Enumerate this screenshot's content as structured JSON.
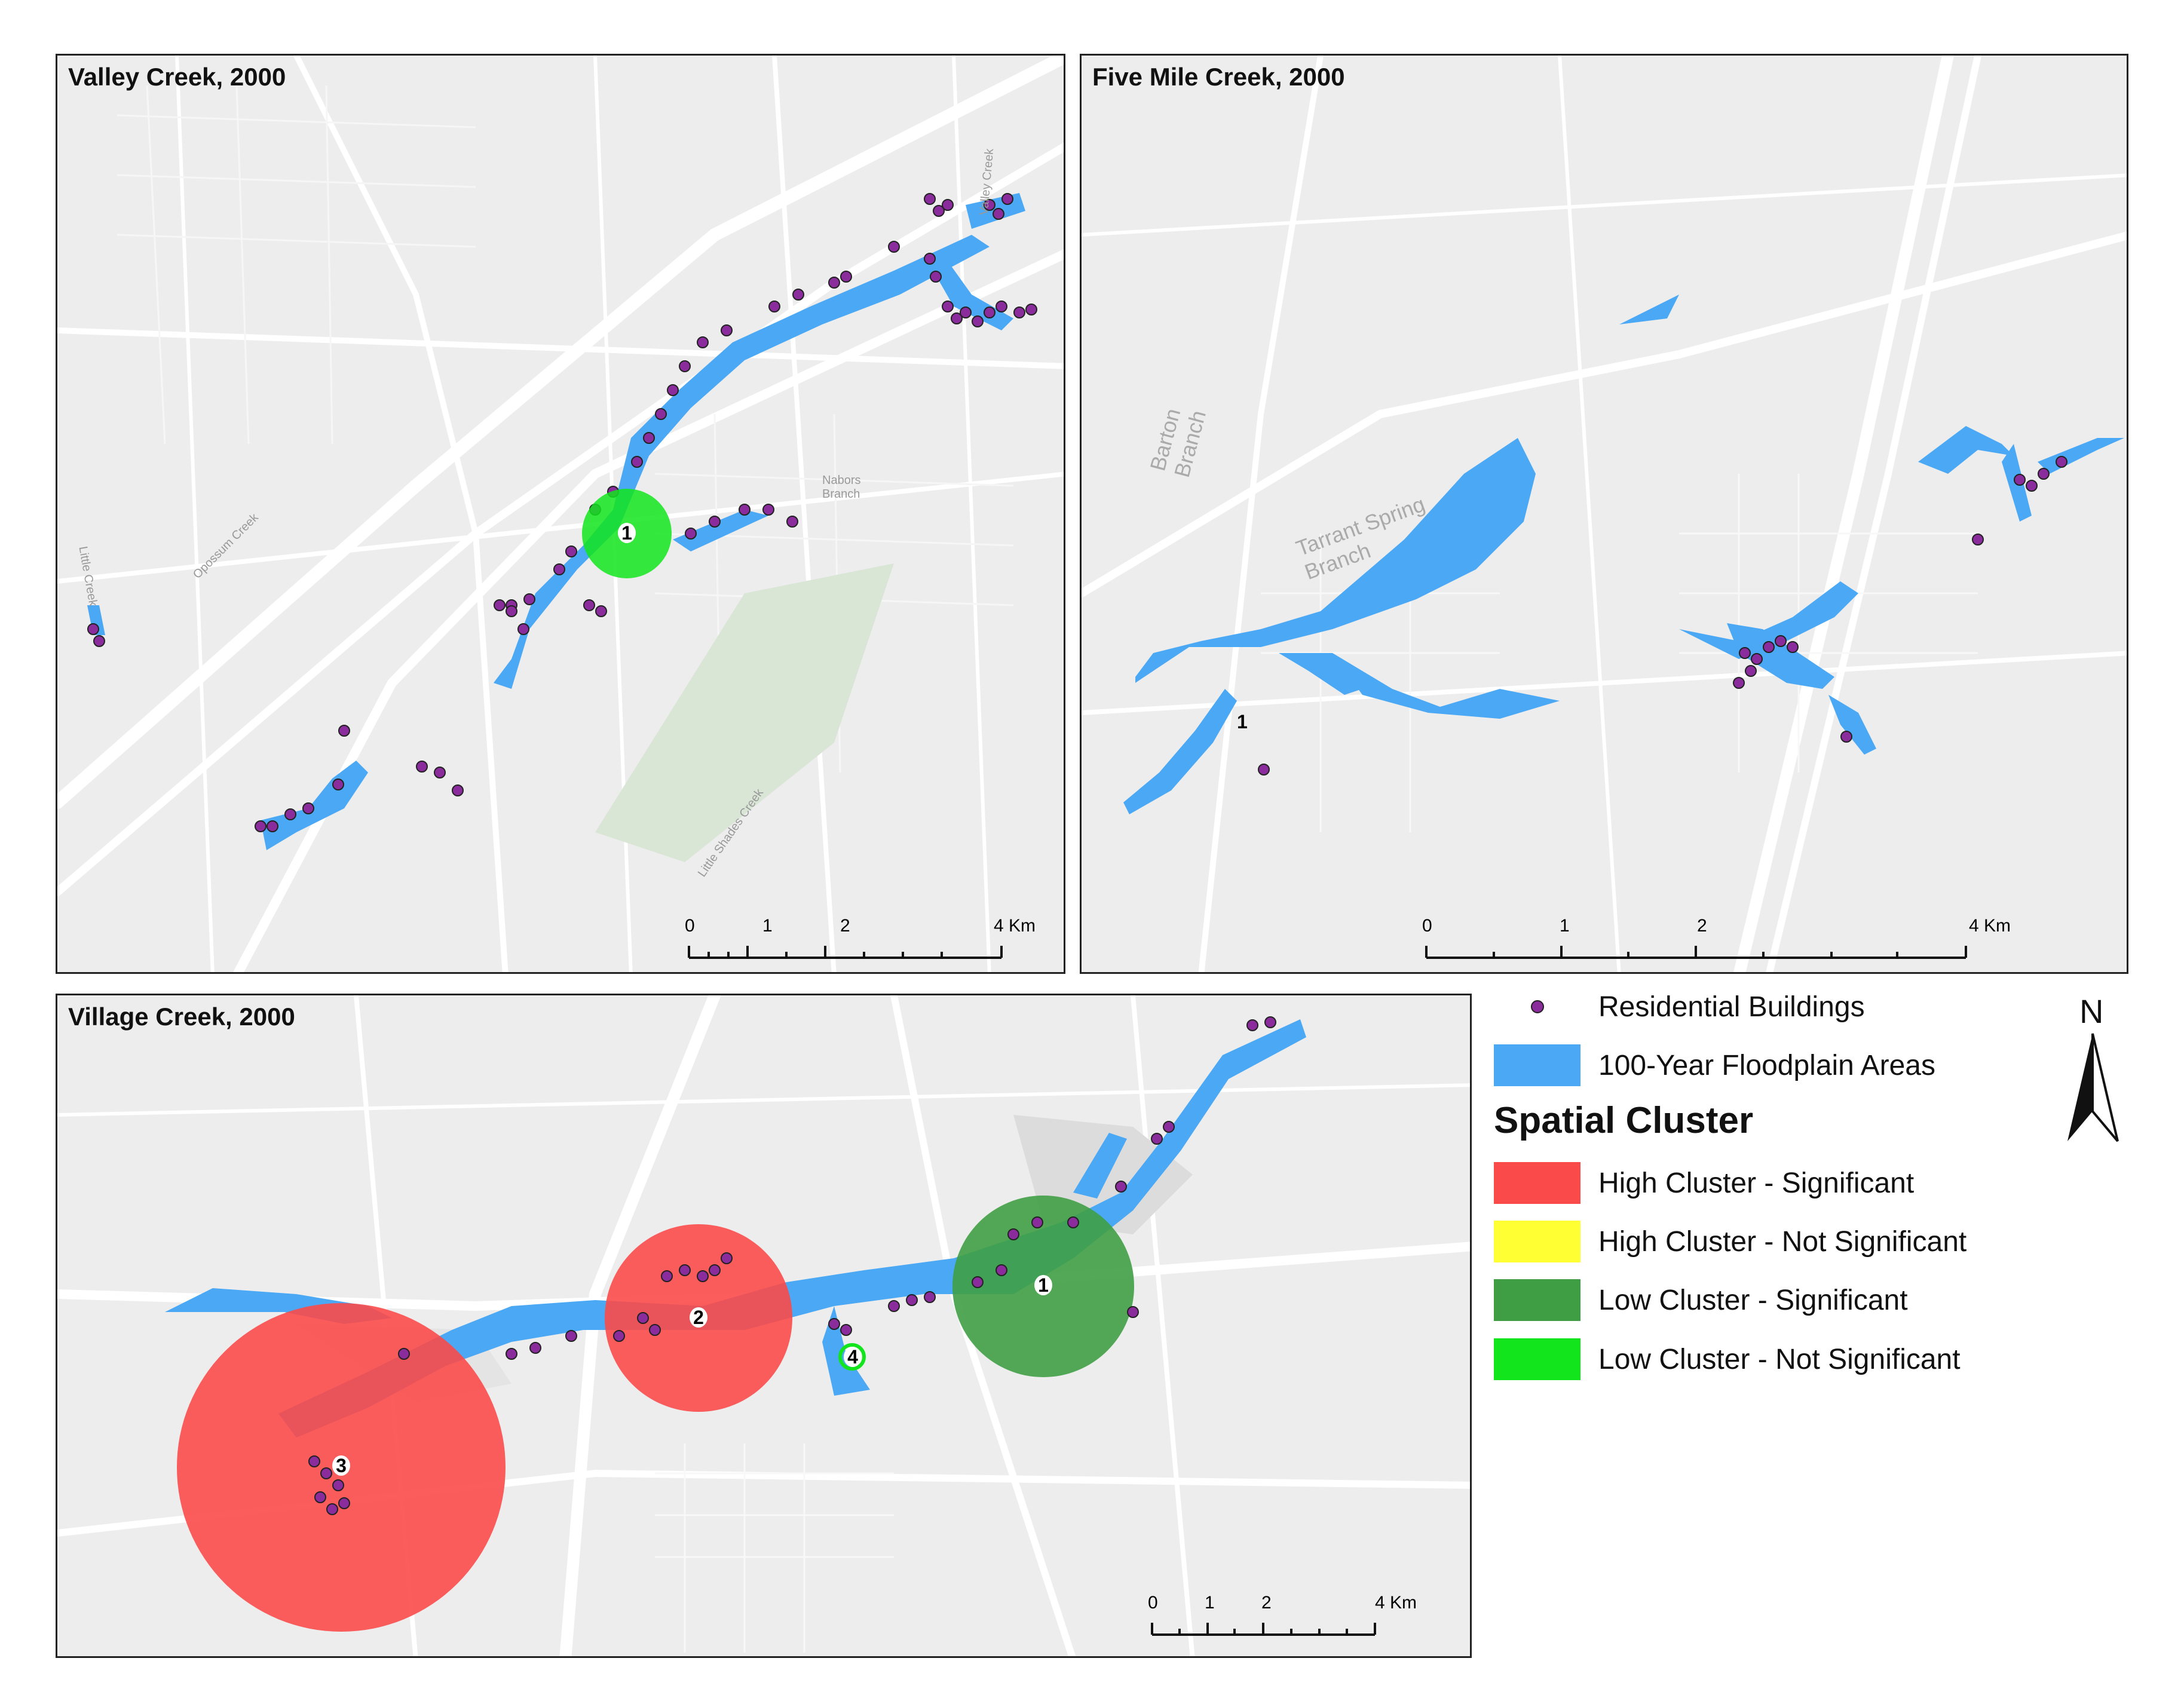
{
  "panels": {
    "valley": {
      "title": "Valley Creek, 2000"
    },
    "fivemile": {
      "title": "Five Mile Creek, 2000"
    },
    "village": {
      "title": "Village Creek, 2000"
    }
  },
  "labels": {
    "valley_streets": [
      "Valley Creek",
      "Opossum Creek",
      "Little Creek",
      "Nabors Branch",
      "Little Shades Creek"
    ],
    "fivemile_streets": [
      "Barton Branch",
      "Tarrant Spring Branch"
    ]
  },
  "cluster_ids": {
    "valley": [
      "1"
    ],
    "fivemile": [
      "1"
    ],
    "village": [
      "1",
      "2",
      "3",
      "4"
    ]
  },
  "scalebar": {
    "ticks": [
      "0",
      "1",
      "2"
    ],
    "end": "4 Km"
  },
  "legend": {
    "residential": "Residential Buildings",
    "floodplain": "100-Year Floodplain Areas",
    "cluster_heading": "Spatial Cluster",
    "items": [
      {
        "label": "High Cluster - Significant",
        "color": "#fb4a4a"
      },
      {
        "label": "High Cluster - Not Significant",
        "color": "#ffff33"
      },
      {
        "label": "Low Cluster - Significant",
        "color": "#3f9e44"
      },
      {
        "label": "Low Cluster - Not Significant",
        "color": "#12e51c"
      }
    ]
  },
  "north_arrow": "N",
  "colors": {
    "floodplain": "#4aa8f5",
    "building": "#8a2c9c",
    "map_bg": "#ededed",
    "road": "#ffffff"
  }
}
